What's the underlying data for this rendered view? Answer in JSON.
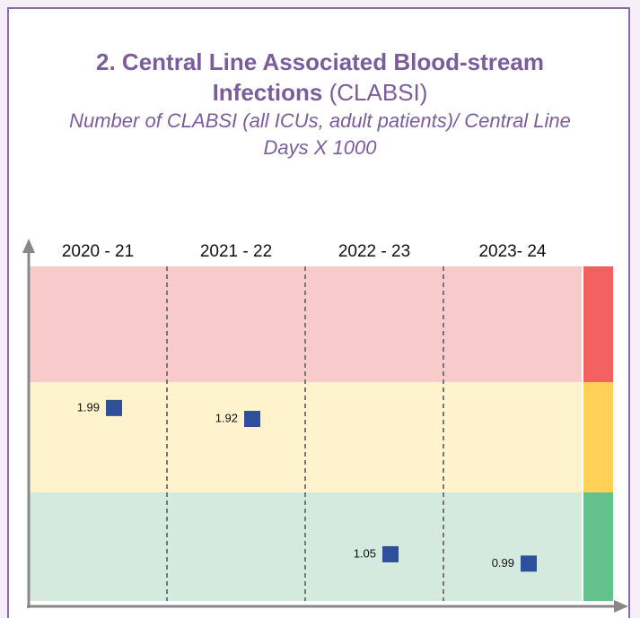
{
  "chart_data": {
    "type": "scatter",
    "title": "2. Central Line Associated Blood-stream Infections",
    "title_suffix": "(CLABSI)",
    "subtitle": "Number of CLABSI (all ICUs, adult patients)/ Central Line Days X 1000",
    "categories": [
      "2020 - 21",
      "2021 - 22",
      "2022 - 23",
      "2023- 24"
    ],
    "values": [
      1.99,
      1.92,
      1.05,
      0.99
    ],
    "color": "#2e4f9a",
    "ylim": [
      0.75,
      2.9
    ]
  }
}
